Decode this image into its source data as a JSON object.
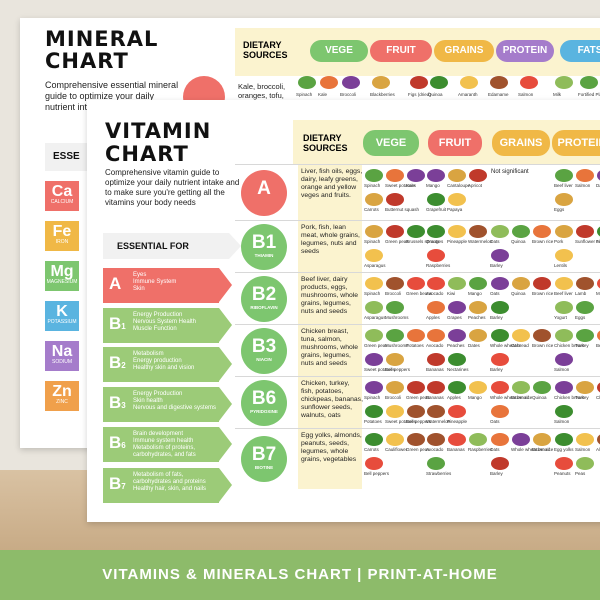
{
  "mineral": {
    "title_line1": "MINERAL",
    "title_line2": "CHART",
    "description": "Comprehensive essential mineral guide to optimize your daily nutrient inta you're gett your body",
    "essential_label": "ESSE",
    "dietary_sources": "DIETARY SOURCES",
    "categories": [
      {
        "label": "VEGE",
        "color": "#7dc66f"
      },
      {
        "label": "FRUIT",
        "color": "#ef7069"
      },
      {
        "label": "GRAINS",
        "color": "#f0b846"
      },
      {
        "label": "PROTEIN",
        "color": "#a57ccb"
      },
      {
        "label": "FATS",
        "color": "#5ab4e0"
      }
    ],
    "first_source": "Kale, broccoli, oranges, tofu, sardines, almonds",
    "foods": [
      "Spinach",
      "Kale",
      "Broccoli",
      "Blackberries",
      "Figs (dried)",
      "Quinoa",
      "Amaranth",
      "Edamame",
      "Salmon",
      "Milk",
      "Fortified Plant based milk"
    ],
    "elements": [
      {
        "symbol": "Ca",
        "name": "CALCIUM",
        "color": "#ef7069"
      },
      {
        "symbol": "Fe",
        "name": "IRON",
        "color": "#f0b846"
      },
      {
        "symbol": "Mg",
        "name": "MAGNESIUM",
        "color": "#7dc66f"
      },
      {
        "symbol": "K",
        "name": "POTASSIUM",
        "color": "#5ab4e0"
      },
      {
        "symbol": "Na",
        "name": "SODIUM",
        "color": "#a57ccb"
      },
      {
        "symbol": "Zn",
        "name": "ZINC",
        "color": "#f0a04b"
      }
    ]
  },
  "vitamin": {
    "title_line1": "VITAMIN",
    "title_line2": "CHART",
    "description": "Comprehensive vitamin guide to optimize your daily nutrient intake and to make sure you're getting all the vitamins your body needs",
    "essential_for": "ESSENTIAL FOR",
    "dietary_sources": "DIETARY SOURCES",
    "categories": [
      {
        "label": "VEGE",
        "color": "#7dc66f"
      },
      {
        "label": "FRUIT",
        "color": "#ef7069"
      },
      {
        "label": "GRAINS",
        "color": "#f0b846"
      },
      {
        "label": "PROTEIN",
        "color": "#f0b846"
      }
    ],
    "rows": [
      {
        "letter": "A",
        "num": "",
        "name": "",
        "color": "#ef7069",
        "arrow": "red",
        "essential": "Eyes\nImmune System\nSkin",
        "sources": "Liver, fish oils, eggs, dairy, leafy greens, orange and yellow veges and fruits.",
        "vege": [
          "Spinach",
          "Sweet potatoes",
          "Kale",
          "Carrots",
          "Butternut squash"
        ],
        "fruit": [
          "Mango",
          "Cantaloupe",
          "Apricot",
          "Grapefruit",
          "Papaya"
        ],
        "grains": [],
        "grains_note": "Not significant",
        "protein": [
          "Beef liver",
          "Salmon",
          "Dairy products",
          "Eggs"
        ]
      },
      {
        "letter": "B",
        "num": "1",
        "name": "THIAMIN",
        "color": "#7dc66f",
        "arrow": "green",
        "essential": "Energy Production\nNervous System Health\nMuscle Function",
        "sources": "Pork, fish, lean meat, whole grains, legumes, nuts and seeds",
        "vege": [
          "Spinach",
          "Green peas",
          "Brussels sprouts",
          "Asparagus"
        ],
        "fruit": [
          "Oranges",
          "Pineapple",
          "Watermelon",
          "Raspberries"
        ],
        "grains": [
          "Oats",
          "Quinoa",
          "Brown rice",
          "Barley"
        ],
        "grains_note": "",
        "protein": [
          "Pork",
          "Sunflower seeds",
          "Fish",
          "Lentils"
        ]
      },
      {
        "letter": "B",
        "num": "2",
        "name": "RIBOFLAVIN",
        "color": "#7dc66f",
        "arrow": "green",
        "essential": "Metabolism\nEnergy production\nHealthy skin and vision",
        "sources": "Beef liver, dairy products, eggs, mushrooms, whole grains, legumes, nuts and seeds",
        "vege": [
          "Spinach",
          "Broccoli",
          "Green beans",
          "Asparagus",
          "Mushrooms"
        ],
        "fruit": [
          "Avocado",
          "Kiwi",
          "Mango",
          "Apples",
          "Grapes",
          "Peaches"
        ],
        "grains": [
          "Oats",
          "Quinoa",
          "Brown rice",
          "Barley"
        ],
        "grains_note": "",
        "protein": [
          "Beef liver",
          "Lamb",
          "Milk",
          "Yogurt",
          "Eggs"
        ]
      },
      {
        "letter": "B",
        "num": "3",
        "name": "NIACIN",
        "color": "#7dc66f",
        "arrow": "green",
        "essential": "Energy Production\nSkin health\nNervous and digestive systems",
        "sources": "Chicken breast, tuna, salmon, mushrooms, whole grains, legumes, nuts and seeds",
        "vege": [
          "Green peas",
          "Mushrooms",
          "Potatoes",
          "Sweet potatoes",
          "Bell peppers"
        ],
        "fruit": [
          "Avocado",
          "Peaches",
          "Dates",
          "Bananas",
          "Nectarines"
        ],
        "grains": [
          "Whole wheat bread",
          "Oats",
          "Brown rice",
          "Barley"
        ],
        "grains_note": "",
        "protein": [
          "Chicken breast",
          "Turkey",
          "Beef liver",
          "Salmon"
        ]
      },
      {
        "letter": "B",
        "num": "6",
        "name": "PYRIDOXINE",
        "color": "#7dc66f",
        "arrow": "green",
        "essential": "Brain development\nImmune system health\nMetabolism of proteins, carbohydrates, and fats",
        "sources": "Chicken, turkey, fish, potatoes, chickpeas, bananas, sunflower seeds, walnuts, oats",
        "vege": [
          "Spinach",
          "Broccoli",
          "Green peas",
          "Potatoes",
          "Sweet potatoes",
          "Bell peppers"
        ],
        "fruit": [
          "Bananas",
          "Apples",
          "Mango",
          "Watermelon",
          "Pineapple"
        ],
        "grains": [
          "Whole wheat bread",
          "Brown rice",
          "Quinoa",
          "Oats"
        ],
        "grains_note": "",
        "protein": [
          "Chicken breast",
          "Turkey",
          "Chickpeas",
          "Salmon"
        ]
      },
      {
        "letter": "B",
        "num": "7",
        "name": "BIOTINE",
        "color": "#7dc66f",
        "arrow": "green",
        "essential": "Metabolism of fats, carbohydrates and proteins\nHealthy hair, skin, and nails",
        "sources": "Egg yolks, almonds, peanuts, seeds, legumes, whole grains, vegetables",
        "vege": [
          "Carrots",
          "Cauliflower",
          "Green peas",
          "Bell peppers"
        ],
        "fruit": [
          "Avocado",
          "Bananas",
          "Raspberries",
          "Strawberries"
        ],
        "grains": [
          "Oats",
          "Whole wheat bread",
          "Brown rice",
          "Barley"
        ],
        "grains_note": "",
        "protein": [
          "Egg yolks",
          "Salmon",
          "Almonds",
          "Peanuts",
          "Peas"
        ]
      }
    ]
  },
  "banner": {
    "text": "VITAMINS & MINERALS CHART  |  PRINT-AT-HOME"
  }
}
